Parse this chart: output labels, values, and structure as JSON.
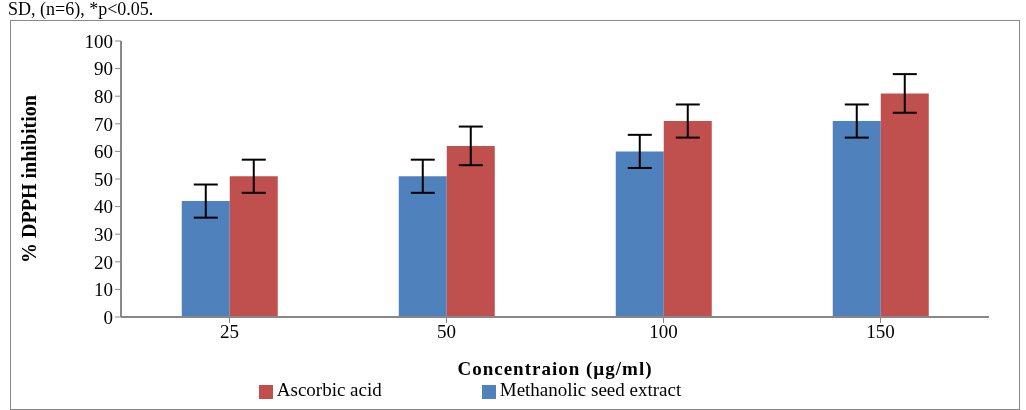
{
  "chart_data": {
    "type": "bar",
    "xlabel": "Concentraion (µg/ml)",
    "ylabel": "% DPPH inhibition",
    "annotations": [
      "SD, (n=6), *p<0.05."
    ],
    "categories": [
      "25",
      "50",
      "100",
      "150"
    ],
    "series": [
      {
        "name": "Methanolic seed extract",
        "color": "#4f81bd",
        "values": [
          42,
          51,
          60,
          71
        ],
        "errors": [
          6,
          6,
          6,
          6
        ]
      },
      {
        "name": "Ascorbic acid",
        "color": "#c0504d",
        "values": [
          51,
          62,
          71,
          81
        ],
        "errors": [
          6,
          7,
          6,
          7
        ]
      }
    ],
    "ylim": [
      0,
      100
    ],
    "yticks": [
      0,
      10,
      20,
      30,
      40,
      50,
      60,
      70,
      80,
      90,
      100
    ],
    "grid": false,
    "legend": "bottom"
  }
}
